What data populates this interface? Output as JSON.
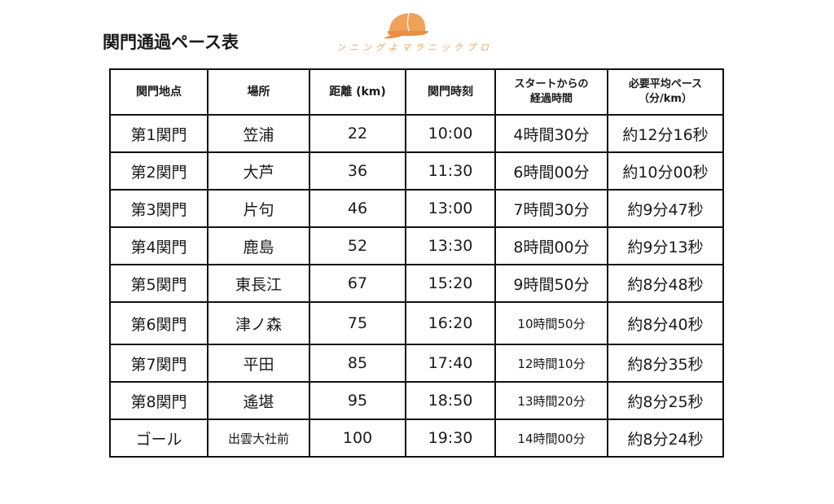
{
  "title": "関門通過ペース表",
  "brand": {
    "text": "ンニングよマラニックプロ",
    "icon": "orange-cap-icon",
    "color": "#f0a15a"
  },
  "table": {
    "headers": [
      "関門地点",
      "場所",
      "距離 (km)",
      "関門時刻",
      "スタートからの経過時間",
      "必要平均ペース（分/km）"
    ],
    "headers_display": {
      "elapsed_line1": "スタートからの",
      "elapsed_line2": "経過時間",
      "pace_line1": "必要平均ペース",
      "pace_line2": "（分/km）"
    },
    "rows": [
      {
        "checkpoint": "第1関門",
        "place": "笠浦",
        "distance": "22",
        "time": "10:00",
        "elapsed": "4時間30分",
        "pace": "約12分16秒"
      },
      {
        "checkpoint": "第2関門",
        "place": "大芦",
        "distance": "36",
        "time": "11:30",
        "elapsed": "6時間00分",
        "pace": "約10分00秒"
      },
      {
        "checkpoint": "第3関門",
        "place": "片句",
        "distance": "46",
        "time": "13:00",
        "elapsed": "7時間30分",
        "pace": "約9分47秒"
      },
      {
        "checkpoint": "第4関門",
        "place": "鹿島",
        "distance": "52",
        "time": "13:30",
        "elapsed": "8時間00分",
        "pace": "約9分13秒"
      },
      {
        "checkpoint": "第5関門",
        "place": "東長江",
        "distance": "67",
        "time": "15:20",
        "elapsed": "9時間50分",
        "pace": "約8分48秒"
      },
      {
        "checkpoint": "第6関門",
        "place": "津ノ森",
        "distance": "75",
        "time": "16:20",
        "elapsed": "10時間50分",
        "pace": "約8分40秒"
      },
      {
        "checkpoint": "第7関門",
        "place": "平田",
        "distance": "85",
        "time": "17:40",
        "elapsed": "12時間10分",
        "pace": "約8分35秒"
      },
      {
        "checkpoint": "第8関門",
        "place": "遙堪",
        "distance": "95",
        "time": "18:50",
        "elapsed": "13時間20分",
        "pace": "約8分25秒"
      },
      {
        "checkpoint": "ゴール",
        "place": "出雲大社前",
        "distance": "100",
        "time": "19:30",
        "elapsed": "14時間00分",
        "pace": "約8分24秒"
      }
    ]
  }
}
